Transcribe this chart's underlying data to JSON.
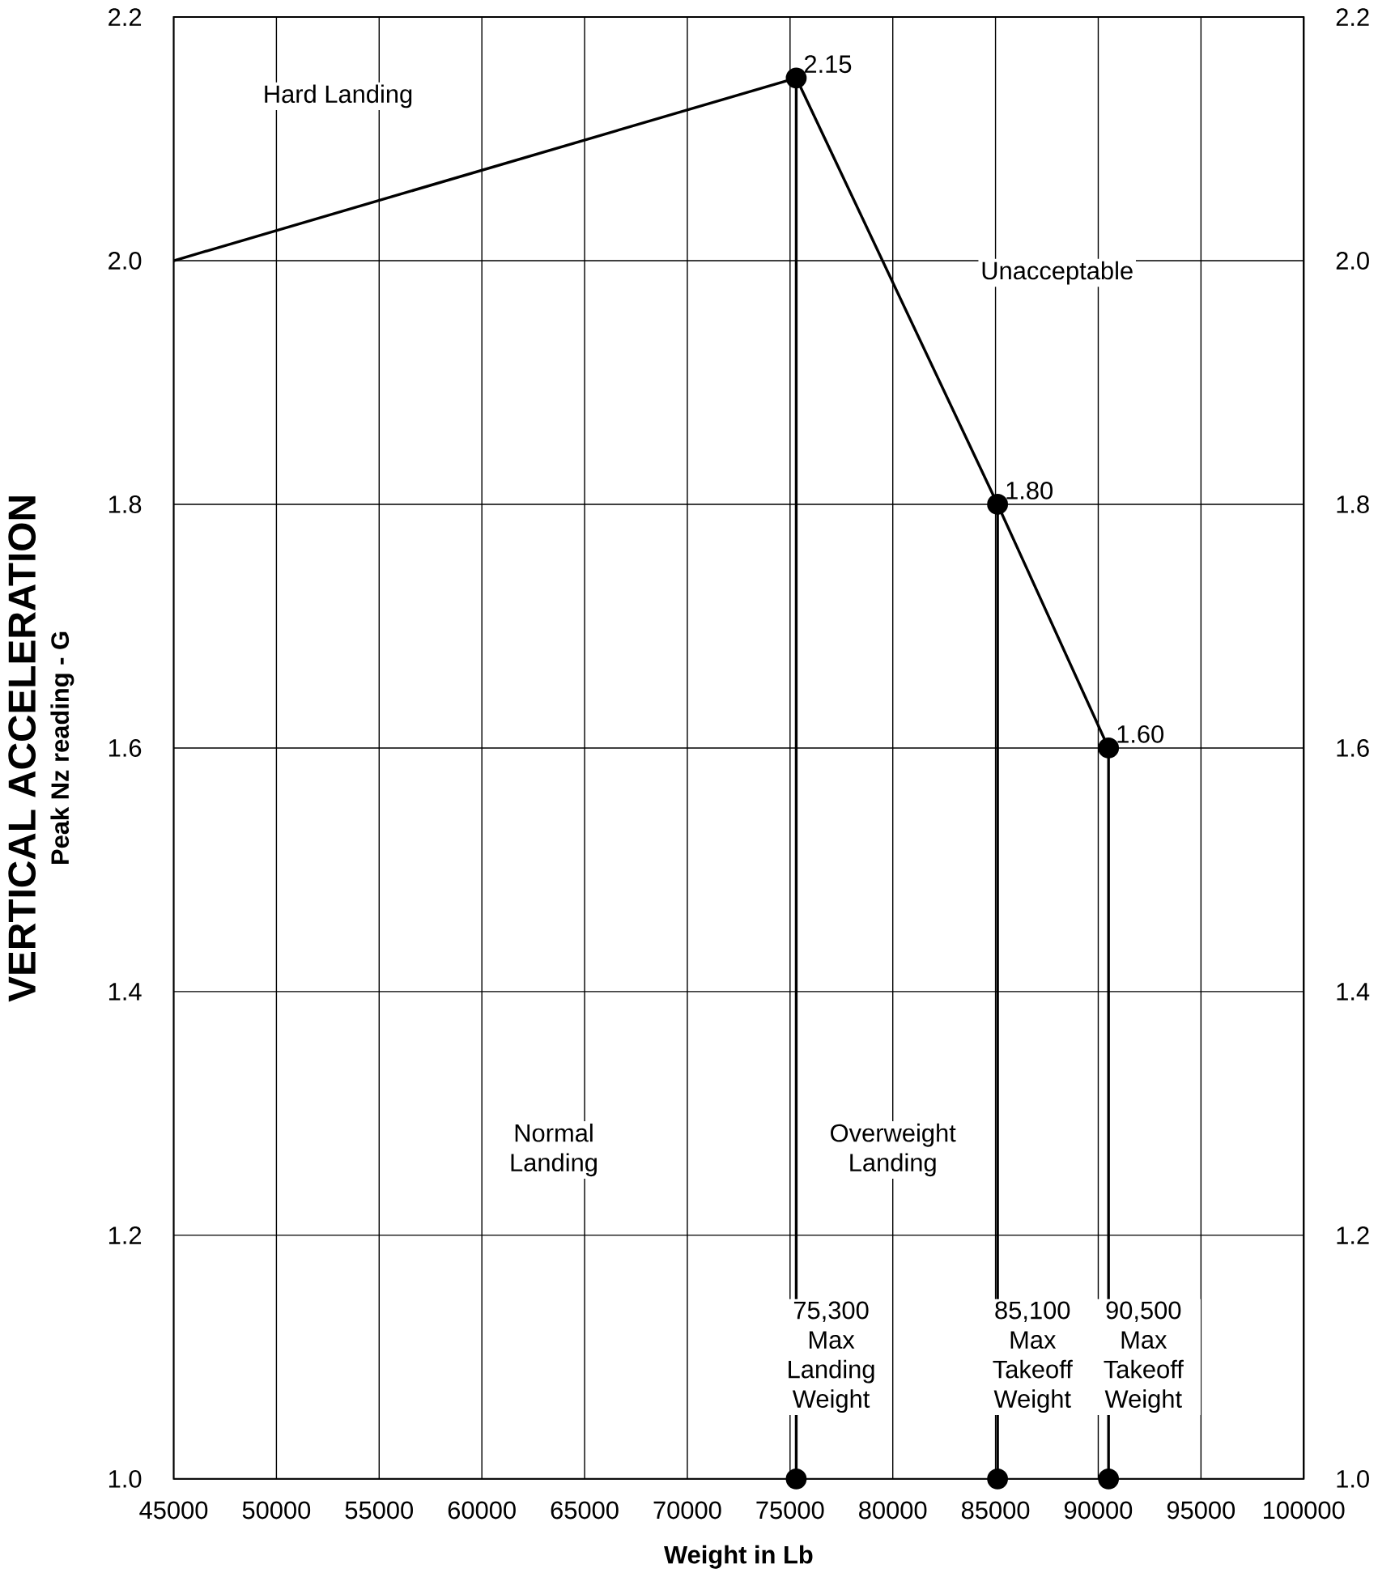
{
  "chart_data": {
    "type": "line",
    "xlabel": "Weight in Lb",
    "ylabel": "VERTICAL ACCELERATION",
    "xlim": [
      45000,
      100000
    ],
    "xticks": [
      45000,
      50000,
      55000,
      60000,
      65000,
      70000,
      75000,
      80000,
      85000,
      90000,
      95000,
      100000
    ],
    "ylim": [
      1.0,
      2.2
    ],
    "yticks": [
      {
        "value": 1.0,
        "label": "1.0"
      },
      {
        "value": 1.2,
        "label": "1.2"
      },
      {
        "value": 1.4,
        "label": "1.4"
      },
      {
        "value": 1.6,
        "label": "1.6"
      },
      {
        "value": 1.8,
        "label": "1.8"
      },
      {
        "value": 2.0,
        "label": "2.0"
      },
      {
        "value": 2.2,
        "label": "2.2"
      }
    ],
    "y2lim": [
      1.0,
      2.2
    ],
    "y2ticks": [
      {
        "value": 1.0,
        "label": "1.0"
      },
      {
        "value": 1.2,
        "label": "1.2"
      },
      {
        "value": 1.4,
        "label": "1.4"
      },
      {
        "value": 1.6,
        "label": "1.6"
      },
      {
        "value": 1.8,
        "label": "1.8"
      },
      {
        "value": 2.0,
        "label": "2.0"
      },
      {
        "value": 2.2,
        "label": "2.2"
      }
    ],
    "grid": true,
    "line_style": "solid",
    "series": [
      {
        "color": "#000000",
        "x": [
          45000,
          75300,
          85100,
          90500
        ],
        "values": [
          2.0,
          2.15,
          1.8,
          1.6
        ],
        "value_labels": [
          null,
          "2.15",
          "1.80",
          "1.60"
        ]
      },
      {
        "color": "#000000",
        "x": [
          75300,
          75300
        ],
        "values": [
          1.0,
          2.15
        ],
        "marker": "circle"
      },
      {
        "color": "#000000",
        "x": [
          85100,
          85100
        ],
        "values": [
          1.0,
          1.8
        ],
        "marker": "circle"
      },
      {
        "color": "#000000",
        "x": [
          90500,
          90500
        ],
        "values": [
          1.0,
          1.6
        ],
        "marker": "circle"
      }
    ],
    "annotations": [
      "Peak Nz reading - G",
      "Hard Landing",
      "Unacceptable",
      "Normal Landing",
      "Overweight Landing",
      {
        "text": "75,300 Max Landing Weight",
        "x": 75300,
        "y": 1.1
      },
      {
        "text": "85,100 Max Takeoff Weight",
        "x": 85100,
        "y": 1.1
      },
      {
        "text": "90,500 Max Takeoff Weight",
        "x": 90500,
        "y": 1.1
      }
    ]
  }
}
